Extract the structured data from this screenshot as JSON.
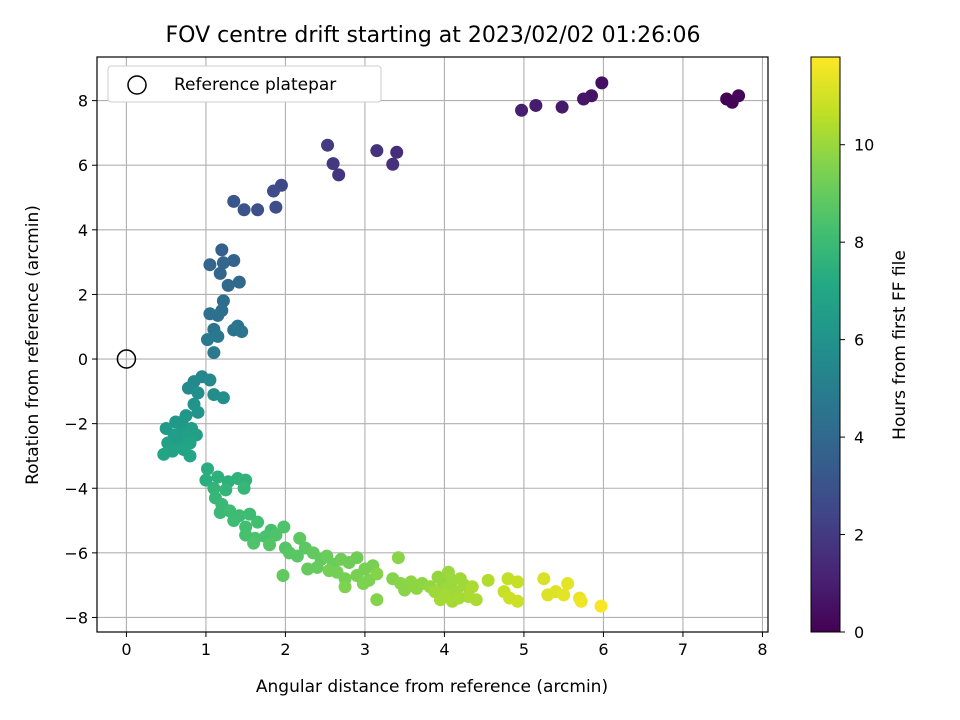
{
  "chart_data": {
    "type": "scatter",
    "title": "FOV centre drift starting at 2023/02/02 01:26:06",
    "xlabel": "Angular distance from reference (arcmin)",
    "ylabel": "Rotation from reference (arcmin)",
    "xlim": [
      -0.37,
      8.07
    ],
    "ylim": [
      -8.45,
      9.35
    ],
    "xticks": [
      0,
      1,
      2,
      3,
      4,
      5,
      6,
      7,
      8
    ],
    "yticks": [
      -8,
      -6,
      -4,
      -2,
      0,
      2,
      4,
      6,
      8
    ],
    "grid": true,
    "legend": {
      "placement": "top-left",
      "entries": [
        "Reference platepar"
      ]
    },
    "reference_point": {
      "x": 0,
      "y": 0,
      "label": "Reference platepar"
    },
    "colorbar": {
      "label": "Hours from first FF file",
      "min": 0,
      "max": 11.8,
      "ticks": [
        0,
        2,
        4,
        6,
        8,
        10
      ],
      "colormap": "viridis"
    },
    "points": [
      {
        "x": 7.55,
        "y": 8.05,
        "h": 0.05
      },
      {
        "x": 7.62,
        "y": 7.95,
        "h": 0.1
      },
      {
        "x": 7.7,
        "y": 8.15,
        "h": 0.15
      },
      {
        "x": 5.98,
        "y": 8.55,
        "h": 0.5
      },
      {
        "x": 5.85,
        "y": 8.15,
        "h": 0.6
      },
      {
        "x": 5.75,
        "y": 8.05,
        "h": 0.7
      },
      {
        "x": 5.48,
        "y": 7.8,
        "h": 0.8
      },
      {
        "x": 5.15,
        "y": 7.85,
        "h": 0.9
      },
      {
        "x": 4.97,
        "y": 7.7,
        "h": 1.0
      },
      {
        "x": 3.4,
        "y": 6.4,
        "h": 1.5
      },
      {
        "x": 3.35,
        "y": 6.03,
        "h": 1.6
      },
      {
        "x": 3.15,
        "y": 6.45,
        "h": 1.7
      },
      {
        "x": 2.67,
        "y": 5.7,
        "h": 1.8
      },
      {
        "x": 2.6,
        "y": 6.05,
        "h": 1.9
      },
      {
        "x": 2.53,
        "y": 6.62,
        "h": 2.0
      },
      {
        "x": 1.95,
        "y": 5.38,
        "h": 2.6
      },
      {
        "x": 1.85,
        "y": 5.2,
        "h": 2.7
      },
      {
        "x": 1.88,
        "y": 4.7,
        "h": 2.8
      },
      {
        "x": 1.65,
        "y": 4.62,
        "h": 2.9
      },
      {
        "x": 1.48,
        "y": 4.62,
        "h": 3.0
      },
      {
        "x": 1.35,
        "y": 4.88,
        "h": 3.1
      },
      {
        "x": 1.2,
        "y": 3.38,
        "h": 3.6
      },
      {
        "x": 1.35,
        "y": 3.05,
        "h": 3.7
      },
      {
        "x": 1.22,
        "y": 2.98,
        "h": 3.8
      },
      {
        "x": 1.05,
        "y": 2.92,
        "h": 3.8
      },
      {
        "x": 1.18,
        "y": 2.65,
        "h": 3.9
      },
      {
        "x": 1.42,
        "y": 2.38,
        "h": 4.0
      },
      {
        "x": 1.28,
        "y": 2.28,
        "h": 4.0
      },
      {
        "x": 1.22,
        "y": 1.8,
        "h": 4.2
      },
      {
        "x": 1.2,
        "y": 1.5,
        "h": 4.3
      },
      {
        "x": 1.15,
        "y": 1.35,
        "h": 4.3
      },
      {
        "x": 1.05,
        "y": 1.4,
        "h": 4.4
      },
      {
        "x": 1.1,
        "y": 0.92,
        "h": 4.5
      },
      {
        "x": 1.35,
        "y": 0.9,
        "h": 4.5
      },
      {
        "x": 1.4,
        "y": 1.02,
        "h": 4.6
      },
      {
        "x": 1.45,
        "y": 0.85,
        "h": 4.6
      },
      {
        "x": 1.15,
        "y": 0.7,
        "h": 4.7
      },
      {
        "x": 1.02,
        "y": 0.6,
        "h": 4.7
      },
      {
        "x": 1.1,
        "y": 0.2,
        "h": 4.8
      },
      {
        "x": 0.95,
        "y": -0.55,
        "h": 5.4
      },
      {
        "x": 0.85,
        "y": -0.7,
        "h": 5.5
      },
      {
        "x": 0.78,
        "y": -0.9,
        "h": 5.6
      },
      {
        "x": 1.05,
        "y": -0.65,
        "h": 5.5
      },
      {
        "x": 1.1,
        "y": -1.1,
        "h": 5.7
      },
      {
        "x": 1.22,
        "y": -1.2,
        "h": 5.8
      },
      {
        "x": 0.9,
        "y": -1.05,
        "h": 5.8
      },
      {
        "x": 0.85,
        "y": -1.4,
        "h": 6.0
      },
      {
        "x": 0.9,
        "y": -1.65,
        "h": 6.1
      },
      {
        "x": 0.75,
        "y": -1.75,
        "h": 6.2
      },
      {
        "x": 0.62,
        "y": -1.95,
        "h": 6.3
      },
      {
        "x": 0.5,
        "y": -2.15,
        "h": 6.4
      },
      {
        "x": 0.7,
        "y": -2.1,
        "h": 6.4
      },
      {
        "x": 0.82,
        "y": -2.15,
        "h": 6.5
      },
      {
        "x": 0.6,
        "y": -2.35,
        "h": 6.5
      },
      {
        "x": 0.75,
        "y": -2.4,
        "h": 6.6
      },
      {
        "x": 0.88,
        "y": -2.35,
        "h": 6.6
      },
      {
        "x": 0.52,
        "y": -2.6,
        "h": 6.7
      },
      {
        "x": 0.65,
        "y": -2.65,
        "h": 6.7
      },
      {
        "x": 0.8,
        "y": -2.6,
        "h": 6.8
      },
      {
        "x": 0.58,
        "y": -2.85,
        "h": 6.8
      },
      {
        "x": 0.72,
        "y": -2.8,
        "h": 6.9
      },
      {
        "x": 0.47,
        "y": -2.95,
        "h": 6.9
      },
      {
        "x": 0.8,
        "y": -3.0,
        "h": 7.0
      },
      {
        "x": 0.62,
        "y": -2.4,
        "h": 6.5
      },
      {
        "x": 0.7,
        "y": -1.95,
        "h": 6.3
      },
      {
        "x": 1.02,
        "y": -3.4,
        "h": 7.3
      },
      {
        "x": 1.0,
        "y": -3.75,
        "h": 7.4
      },
      {
        "x": 1.15,
        "y": -3.65,
        "h": 7.5
      },
      {
        "x": 1.28,
        "y": -3.8,
        "h": 7.5
      },
      {
        "x": 1.4,
        "y": -3.7,
        "h": 7.6
      },
      {
        "x": 1.5,
        "y": -3.75,
        "h": 7.6
      },
      {
        "x": 1.25,
        "y": -4.05,
        "h": 7.7
      },
      {
        "x": 1.1,
        "y": -4.0,
        "h": 7.7
      },
      {
        "x": 1.48,
        "y": -4.0,
        "h": 7.8
      },
      {
        "x": 1.12,
        "y": -4.3,
        "h": 7.8
      },
      {
        "x": 1.2,
        "y": -4.5,
        "h": 7.9
      },
      {
        "x": 1.18,
        "y": -4.75,
        "h": 7.9
      },
      {
        "x": 1.3,
        "y": -4.7,
        "h": 8.0
      },
      {
        "x": 1.42,
        "y": -4.85,
        "h": 8.0
      },
      {
        "x": 1.55,
        "y": -4.8,
        "h": 8.1
      },
      {
        "x": 1.35,
        "y": -5.0,
        "h": 8.1
      },
      {
        "x": 1.5,
        "y": -5.2,
        "h": 8.2
      },
      {
        "x": 1.65,
        "y": -5.05,
        "h": 8.2
      },
      {
        "x": 1.82,
        "y": -5.3,
        "h": 8.3
      },
      {
        "x": 1.5,
        "y": -5.45,
        "h": 8.3
      },
      {
        "x": 1.62,
        "y": -5.55,
        "h": 8.4
      },
      {
        "x": 1.75,
        "y": -5.5,
        "h": 8.4
      },
      {
        "x": 1.88,
        "y": -5.45,
        "h": 8.5
      },
      {
        "x": 1.98,
        "y": -5.2,
        "h": 8.5
      },
      {
        "x": 1.6,
        "y": -5.7,
        "h": 8.5
      },
      {
        "x": 1.8,
        "y": -5.75,
        "h": 8.6
      },
      {
        "x": 2.0,
        "y": -5.85,
        "h": 8.6
      },
      {
        "x": 2.05,
        "y": -6.0,
        "h": 8.7
      },
      {
        "x": 2.15,
        "y": -6.1,
        "h": 8.7
      },
      {
        "x": 2.25,
        "y": -5.85,
        "h": 8.8
      },
      {
        "x": 2.18,
        "y": -5.55,
        "h": 8.8
      },
      {
        "x": 2.35,
        "y": -6.0,
        "h": 8.9
      },
      {
        "x": 2.45,
        "y": -6.2,
        "h": 8.9
      },
      {
        "x": 1.97,
        "y": -6.7,
        "h": 8.9
      },
      {
        "x": 2.28,
        "y": -6.5,
        "h": 9.0
      },
      {
        "x": 2.4,
        "y": -6.45,
        "h": 9.0
      },
      {
        "x": 2.52,
        "y": -6.1,
        "h": 9.1
      },
      {
        "x": 2.6,
        "y": -6.35,
        "h": 9.1
      },
      {
        "x": 2.7,
        "y": -6.2,
        "h": 9.2
      },
      {
        "x": 2.8,
        "y": -6.3,
        "h": 9.2
      },
      {
        "x": 2.9,
        "y": -6.15,
        "h": 9.2
      },
      {
        "x": 2.55,
        "y": -6.55,
        "h": 9.3
      },
      {
        "x": 2.65,
        "y": -6.6,
        "h": 9.3
      },
      {
        "x": 2.75,
        "y": -6.8,
        "h": 9.3
      },
      {
        "x": 2.9,
        "y": -6.7,
        "h": 9.4
      },
      {
        "x": 3.0,
        "y": -6.5,
        "h": 9.4
      },
      {
        "x": 3.1,
        "y": -6.4,
        "h": 9.4
      },
      {
        "x": 3.05,
        "y": -6.85,
        "h": 9.5
      },
      {
        "x": 2.98,
        "y": -6.95,
        "h": 9.5
      },
      {
        "x": 2.75,
        "y": -7.05,
        "h": 9.5
      },
      {
        "x": 3.15,
        "y": -6.65,
        "h": 9.6
      },
      {
        "x": 3.15,
        "y": -7.45,
        "h": 9.6
      },
      {
        "x": 3.35,
        "y": -6.8,
        "h": 9.6
      },
      {
        "x": 3.42,
        "y": -6.15,
        "h": 9.7
      },
      {
        "x": 3.45,
        "y": -6.95,
        "h": 9.7
      },
      {
        "x": 3.5,
        "y": -7.15,
        "h": 9.7
      },
      {
        "x": 3.58,
        "y": -6.9,
        "h": 9.8
      },
      {
        "x": 3.65,
        "y": -7.1,
        "h": 9.8
      },
      {
        "x": 3.72,
        "y": -6.95,
        "h": 9.8
      },
      {
        "x": 3.82,
        "y": -7.05,
        "h": 9.9
      },
      {
        "x": 3.92,
        "y": -6.75,
        "h": 9.9
      },
      {
        "x": 3.98,
        "y": -6.95,
        "h": 9.9
      },
      {
        "x": 4.02,
        "y": -7.1,
        "h": 10.0
      },
      {
        "x": 4.05,
        "y": -6.6,
        "h": 10.0
      },
      {
        "x": 4.1,
        "y": -6.85,
        "h": 10.0
      },
      {
        "x": 4.15,
        "y": -7.2,
        "h": 10.1
      },
      {
        "x": 4.2,
        "y": -6.8,
        "h": 10.1
      },
      {
        "x": 4.25,
        "y": -7.0,
        "h": 10.1
      },
      {
        "x": 4.0,
        "y": -7.3,
        "h": 10.2
      },
      {
        "x": 3.95,
        "y": -7.45,
        "h": 10.2
      },
      {
        "x": 4.1,
        "y": -7.5,
        "h": 10.2
      },
      {
        "x": 4.3,
        "y": -7.35,
        "h": 10.3
      },
      {
        "x": 4.4,
        "y": -7.45,
        "h": 10.3
      },
      {
        "x": 4.35,
        "y": -7.05,
        "h": 10.3
      },
      {
        "x": 4.55,
        "y": -6.85,
        "h": 10.4
      },
      {
        "x": 3.88,
        "y": -7.2,
        "h": 10.1
      },
      {
        "x": 4.18,
        "y": -7.4,
        "h": 10.2
      },
      {
        "x": 4.8,
        "y": -6.8,
        "h": 10.7
      },
      {
        "x": 4.92,
        "y": -6.9,
        "h": 10.8
      },
      {
        "x": 4.75,
        "y": -7.2,
        "h": 10.8
      },
      {
        "x": 4.82,
        "y": -7.4,
        "h": 10.9
      },
      {
        "x": 4.92,
        "y": -7.5,
        "h": 10.9
      },
      {
        "x": 5.25,
        "y": -6.8,
        "h": 11.1
      },
      {
        "x": 5.3,
        "y": -7.3,
        "h": 11.2
      },
      {
        "x": 5.4,
        "y": -7.2,
        "h": 11.2
      },
      {
        "x": 5.5,
        "y": -7.3,
        "h": 11.3
      },
      {
        "x": 5.55,
        "y": -6.95,
        "h": 11.3
      },
      {
        "x": 5.7,
        "y": -7.4,
        "h": 11.4
      },
      {
        "x": 5.72,
        "y": -7.5,
        "h": 11.5
      },
      {
        "x": 5.97,
        "y": -7.65,
        "h": 11.7
      }
    ]
  }
}
